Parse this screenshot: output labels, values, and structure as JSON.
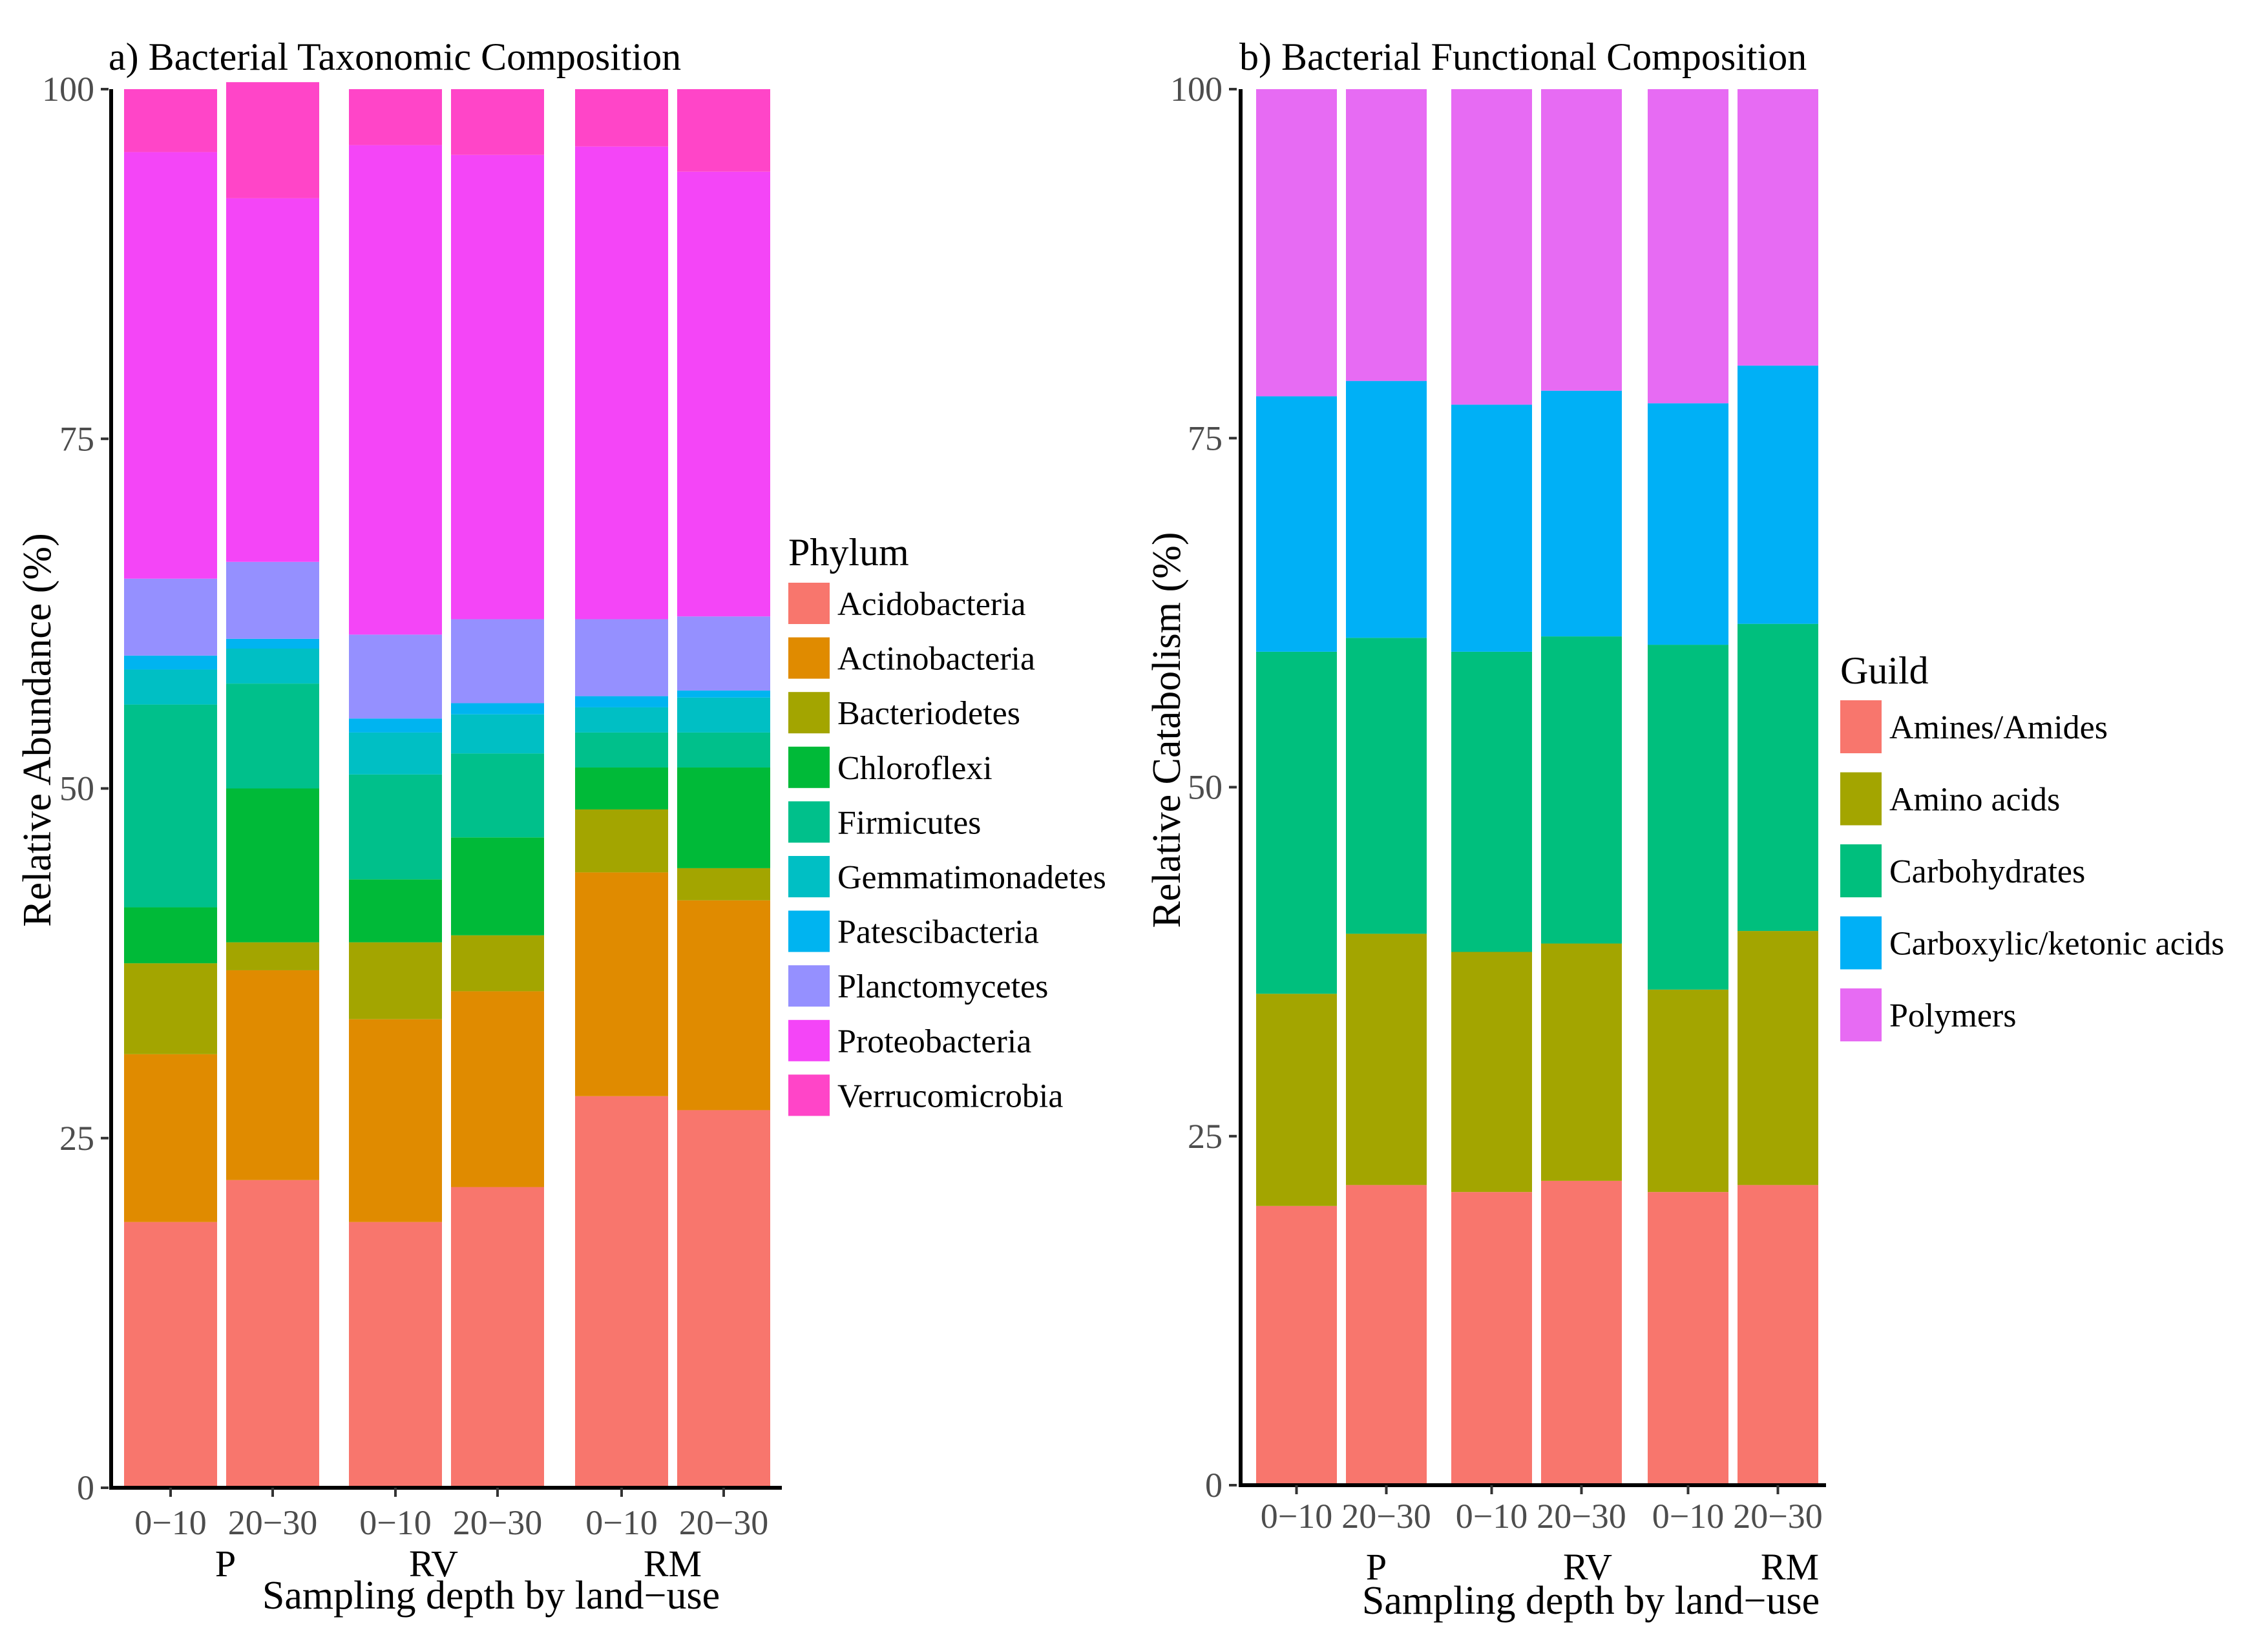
{
  "chart_data": [
    {
      "type": "bar",
      "stacked": true,
      "title": "a) Bacterial Taxonomic Composition",
      "xlabel": "Sampling depth by land−use",
      "ylabel": "Relative Abundance (%)",
      "ylim": [
        0,
        100
      ],
      "yticks": [
        "0",
        "25",
        "50",
        "75",
        "100"
      ],
      "categories": [
        "0−10",
        "20−30",
        "0−10",
        "20−30",
        "0−10",
        "20−30"
      ],
      "groups": [
        "P",
        "RV",
        "RM"
      ],
      "legend_title": "Phylum",
      "legend_position": "right",
      "series": [
        {
          "name": "Acidobacteria",
          "color": "#F8766D",
          "values": [
            19.0,
            22.0,
            19.0,
            21.5,
            28.0,
            27.0
          ]
        },
        {
          "name": "Actinobacteria",
          "color": "#E08B00",
          "values": [
            12.0,
            15.0,
            14.5,
            14.0,
            16.0,
            15.0
          ]
        },
        {
          "name": "Bacteriodetes",
          "color": "#A3A500",
          "values": [
            6.5,
            2.0,
            5.5,
            4.0,
            4.5,
            2.3
          ]
        },
        {
          "name": "Chloroflexi",
          "color": "#00BA38",
          "values": [
            4.0,
            11.0,
            4.5,
            7.0,
            3.0,
            7.2
          ]
        },
        {
          "name": "Firmicutes",
          "color": "#00C08B",
          "values": [
            14.5,
            7.5,
            7.5,
            6.0,
            2.5,
            2.5
          ]
        },
        {
          "name": "Gemmatimonadetes",
          "color": "#00BFC4",
          "values": [
            2.5,
            2.5,
            3.0,
            2.8,
            1.8,
            2.5
          ]
        },
        {
          "name": "Patescibacteria",
          "color": "#00B4F0",
          "values": [
            1.0,
            0.7,
            1.0,
            0.8,
            0.8,
            0.5
          ]
        },
        {
          "name": "Planctomycetes",
          "color": "#9590FF",
          "values": [
            5.5,
            5.5,
            6.0,
            6.0,
            5.5,
            5.3
          ]
        },
        {
          "name": "Proteobacteria",
          "color": "#F445F7",
          "values": [
            30.5,
            26.0,
            35.0,
            33.2,
            33.8,
            31.8
          ]
        },
        {
          "name": "Verrucomicrobia",
          "color": "#FF45C8",
          "values": [
            4.5,
            8.3,
            4.0,
            4.7,
            4.1,
            5.9
          ]
        }
      ]
    },
    {
      "type": "bar",
      "stacked": true,
      "title": "b) Bacterial Functional Composition",
      "xlabel": "Sampling depth by land−use",
      "ylabel": "Relative Catabolism (%)",
      "ylim": [
        0,
        100
      ],
      "yticks": [
        "0",
        "25",
        "50",
        "75",
        "100"
      ],
      "categories": [
        "0−10",
        "20−30",
        "0−10",
        "20−30",
        "0−10",
        "20−30"
      ],
      "groups": [
        "P",
        "RV",
        "RM"
      ],
      "legend_title": "Guild",
      "legend_position": "right",
      "series": [
        {
          "name": "Amines/Amides",
          "color": "#F8766D",
          "values": [
            20.0,
            21.5,
            21.0,
            21.8,
            21.0,
            21.5
          ]
        },
        {
          "name": "Amino acids",
          "color": "#A3A500",
          "values": [
            15.2,
            18.0,
            17.2,
            17.0,
            14.5,
            18.2
          ]
        },
        {
          "name": "Carbohydrates",
          "color": "#00BF7D",
          "values": [
            24.5,
            21.2,
            21.5,
            22.0,
            24.7,
            22.0
          ]
        },
        {
          "name": "Carboxylic/ketonic acids",
          "color": "#00B0F6",
          "values": [
            18.3,
            18.4,
            17.7,
            17.6,
            17.3,
            18.5
          ]
        },
        {
          "name": "Polymers",
          "color": "#E76BF3",
          "values": [
            22.0,
            20.9,
            22.6,
            21.6,
            22.5,
            19.8
          ]
        }
      ]
    }
  ]
}
